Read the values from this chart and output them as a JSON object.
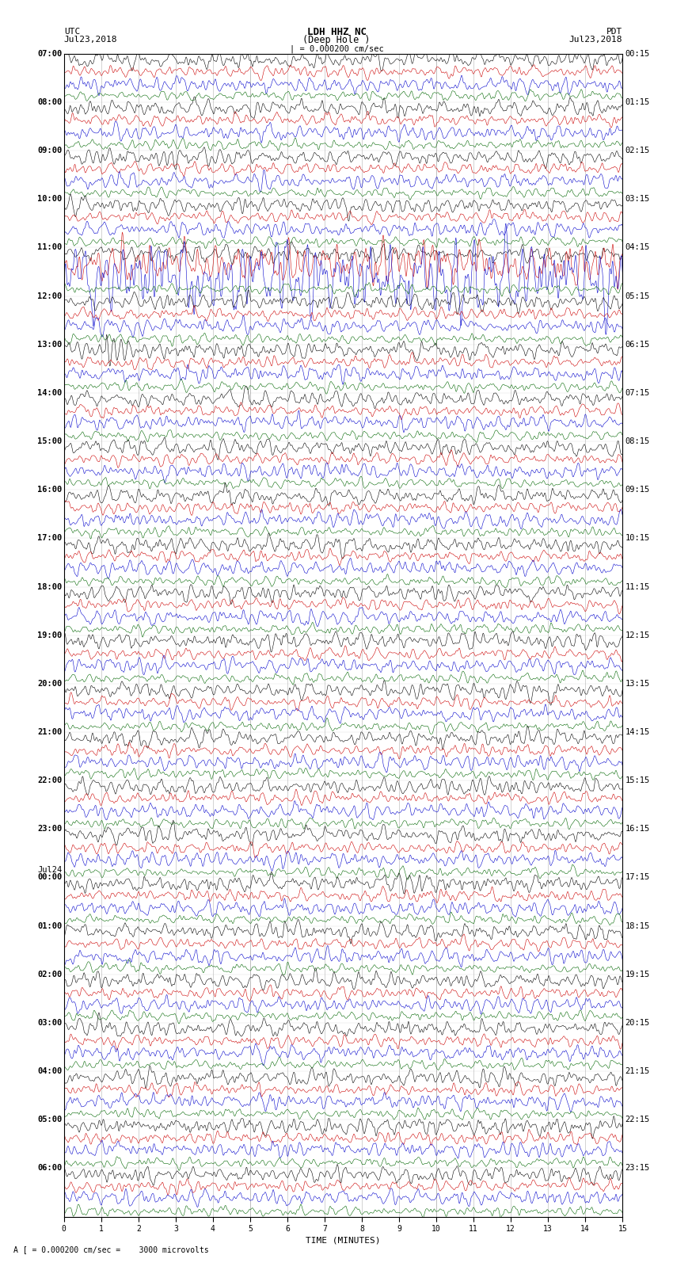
{
  "title_line1": "LDH HHZ NC",
  "title_line2": "(Deep Hole )",
  "scale_label": "| = 0.000200 cm/sec",
  "bottom_label": "A [ = 0.000200 cm/sec =    3000 microvolts",
  "xlabel": "TIME (MINUTES)",
  "left_header_line1": "UTC",
  "left_header_line2": "Jul23,2018",
  "right_header_line1": "PDT",
  "right_header_line2": "Jul23,2018",
  "fig_bg": "#ffffff",
  "trace_colors": [
    "#000000",
    "#cc0000",
    "#0000cc",
    "#006600"
  ],
  "minutes_per_row": 15,
  "n_hour_blocks": 24,
  "n_channels": 4,
  "row_labels_utc": [
    "07:00",
    "08:00",
    "09:00",
    "10:00",
    "11:00",
    "12:00",
    "13:00",
    "14:00",
    "15:00",
    "16:00",
    "17:00",
    "18:00",
    "19:00",
    "20:00",
    "21:00",
    "22:00",
    "23:00",
    "Jul24\n00:00",
    "01:00",
    "02:00",
    "03:00",
    "04:00",
    "05:00",
    "06:00"
  ],
  "row_labels_pdt": [
    "00:15",
    "01:15",
    "02:15",
    "03:15",
    "04:15",
    "05:15",
    "06:15",
    "07:15",
    "08:15",
    "09:15",
    "10:15",
    "11:15",
    "12:15",
    "13:15",
    "14:15",
    "15:15",
    "16:15",
    "17:15",
    "18:15",
    "19:15",
    "20:15",
    "21:15",
    "22:15",
    "23:15"
  ],
  "grid_color": "#808080",
  "label_fontsize": 7.5,
  "xtick_labels": [
    "0",
    "1",
    "2",
    "3",
    "4",
    "5",
    "6",
    "7",
    "8",
    "9",
    "10",
    "11",
    "12",
    "13",
    "14",
    "15"
  ]
}
